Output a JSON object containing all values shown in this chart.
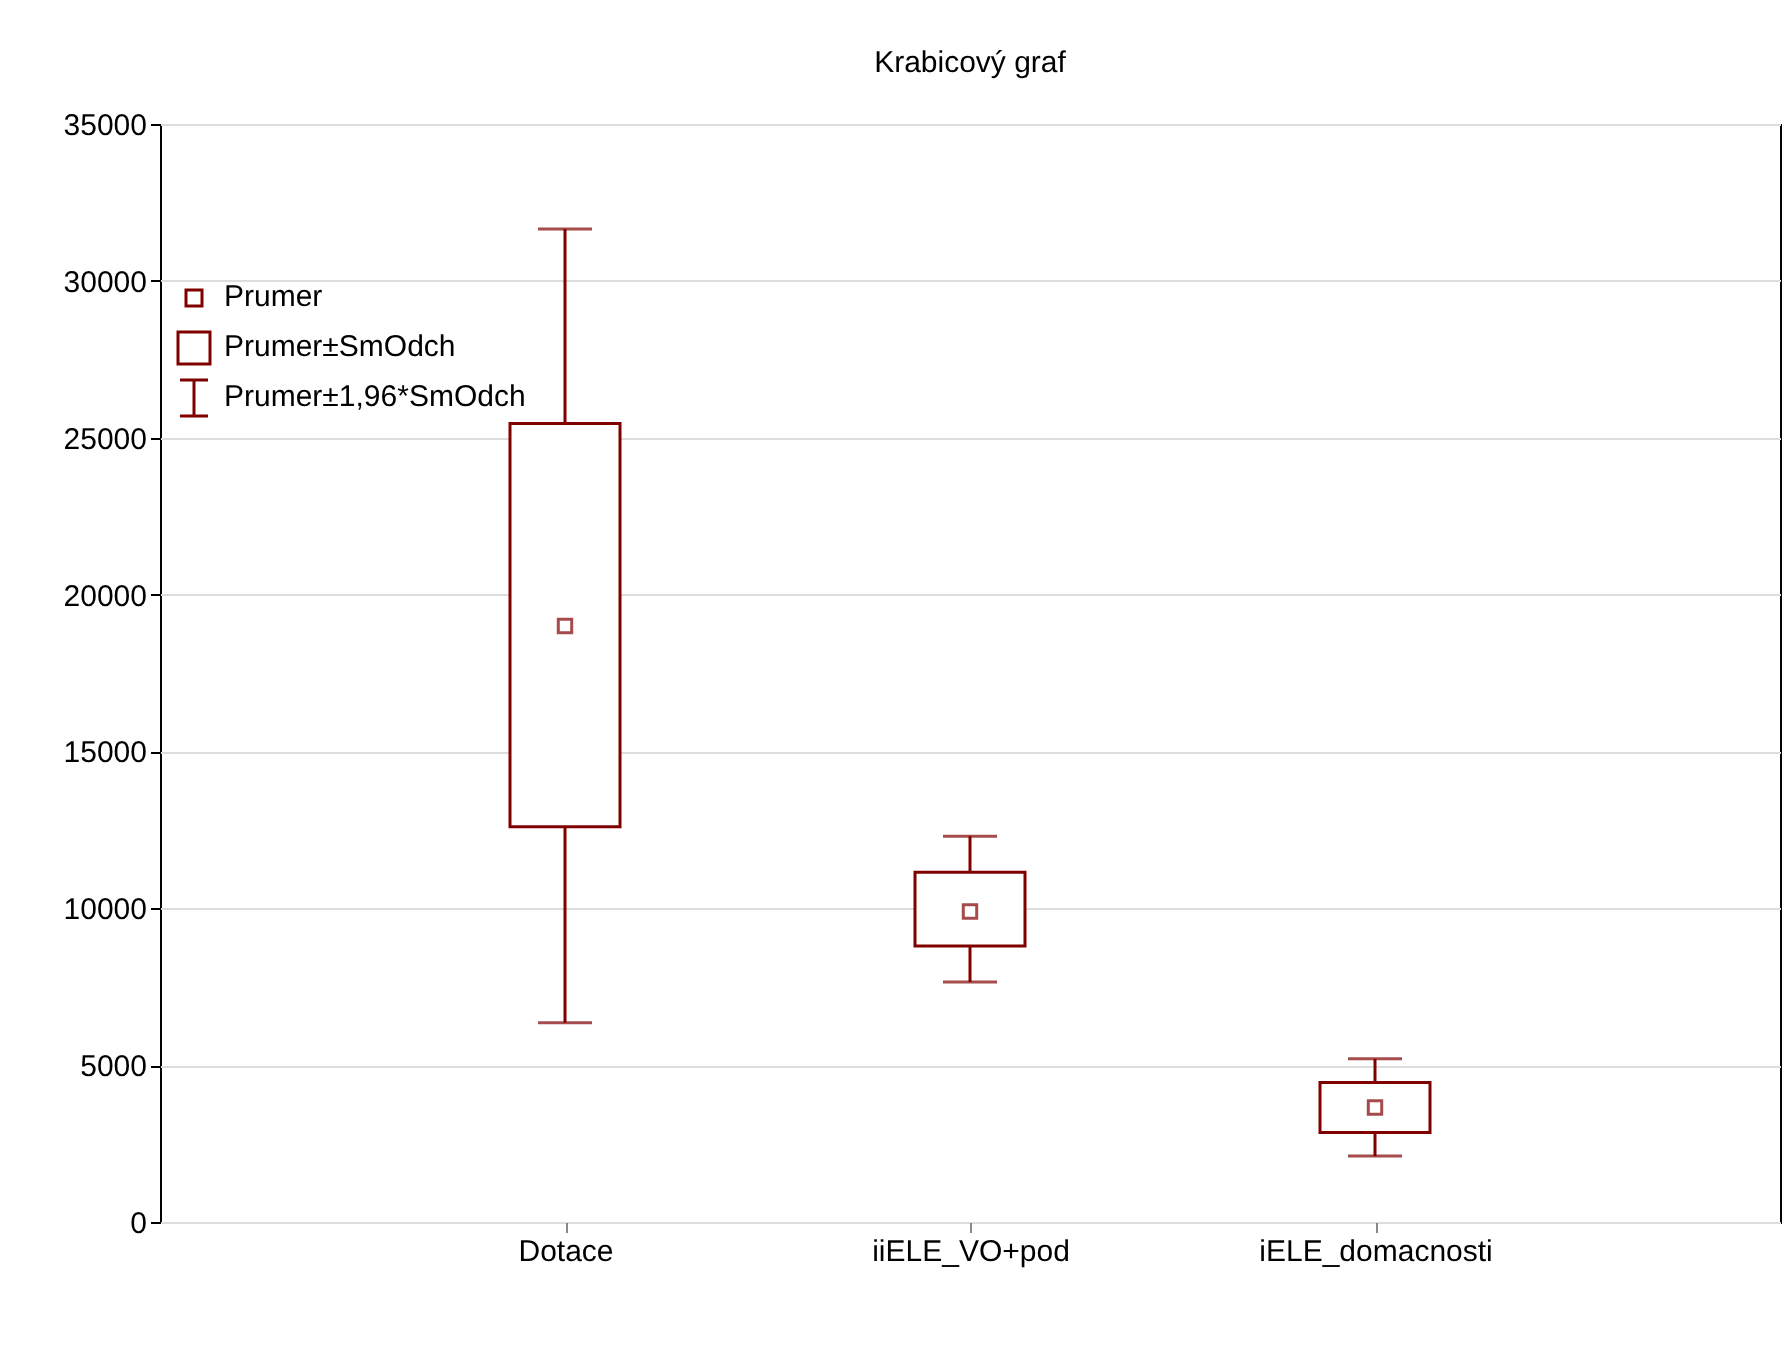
{
  "chart_data": {
    "type": "box",
    "title": "Krabicový graf",
    "categories": [
      "Dotace",
      "iiELE_VO+pod",
      "iELE_domacnosti"
    ],
    "boxes": [
      {
        "low": 6350,
        "q1": 12600,
        "median": 19000,
        "q3": 25450,
        "high": 31650
      },
      {
        "low": 7650,
        "q1": 8800,
        "median": 9900,
        "q3": 11150,
        "high": 12300
      },
      {
        "low": 2100,
        "q1": 2850,
        "median": 3650,
        "q3": 4450,
        "high": 5200
      }
    ],
    "color": "#800000",
    "ylim": [
      0,
      35000
    ],
    "yticks": [
      0,
      5000,
      10000,
      15000,
      20000,
      25000,
      30000,
      35000
    ],
    "grid": "y",
    "annotations": [
      "Prumer",
      "Prumer±SmOdch",
      "Prumer±1,96*SmOdch"
    ]
  }
}
